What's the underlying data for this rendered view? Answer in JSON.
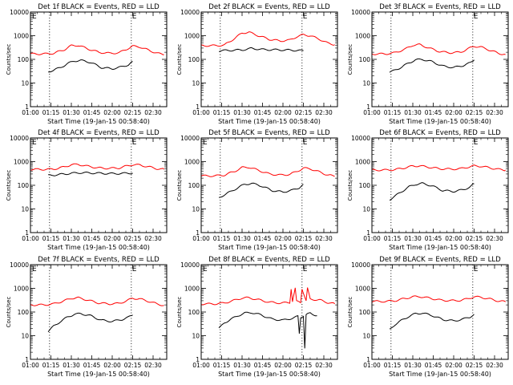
{
  "chart_data": [
    {
      "type": "line",
      "title": "Det 1f BLACK = Events, RED = LLD",
      "xlabel": "Start Time (19-Jan-15 00:58:40)",
      "ylabel": "Counts/sec",
      "yscale": "log",
      "ylim": [
        1,
        10000
      ],
      "xlim": [
        "01:00",
        "02:40"
      ],
      "x_ticks": [
        "01:00",
        "01:15",
        "01:30",
        "01:45",
        "02:00",
        "02:15",
        "02:30"
      ],
      "y_ticks": [
        "1",
        "10",
        "100",
        "1000",
        "10000"
      ],
      "markers": [
        {
          "x": "01:14",
          "label": ""
        },
        {
          "x": "02:14",
          "label": "E"
        }
      ],
      "corner_label": "E",
      "series": [
        {
          "color": "#ff0000",
          "x": [
            "01:00",
            "01:10",
            "01:17",
            "01:25",
            "01:30",
            "01:35",
            "01:42",
            "01:50",
            "01:58",
            "02:05",
            "02:10",
            "02:15",
            "02:20",
            "02:27",
            "02:33",
            "02:38"
          ],
          "values": [
            170,
            170,
            180,
            260,
            380,
            390,
            280,
            200,
            180,
            190,
            260,
            360,
            340,
            240,
            180,
            160
          ]
        },
        {
          "color": "#000000",
          "x": [
            "01:13",
            "01:17",
            "01:22",
            "01:27",
            "01:32",
            "01:37",
            "01:44",
            "01:52",
            "02:00",
            "02:07",
            "02:12",
            "02:15"
          ],
          "values": [
            30,
            35,
            45,
            65,
            85,
            90,
            75,
            45,
            40,
            48,
            60,
            80
          ]
        }
      ]
    },
    {
      "type": "line",
      "title": "Det 2f BLACK = Events, RED = LLD",
      "xlabel": "Start Time (19-Jan-15 00:58:40)",
      "ylabel": "Counts/sec",
      "yscale": "log",
      "ylim": [
        1,
        10000
      ],
      "xlim": [
        "01:00",
        "02:40"
      ],
      "x_ticks": [
        "01:00",
        "01:15",
        "01:30",
        "01:45",
        "02:00",
        "02:15",
        "02:30"
      ],
      "y_ticks": [
        "1",
        "10",
        "100",
        "1000",
        "10000"
      ],
      "markers": [
        {
          "x": "01:14",
          "label": ""
        },
        {
          "x": "02:14",
          "label": "E"
        }
      ],
      "corner_label": "",
      "series": [
        {
          "color": "#ff0000",
          "x": [
            "01:00",
            "01:10",
            "01:17",
            "01:25",
            "01:30",
            "01:35",
            "01:42",
            "01:50",
            "01:58",
            "02:05",
            "02:10",
            "02:15",
            "02:20",
            "02:27",
            "02:33",
            "02:38"
          ],
          "values": [
            380,
            380,
            400,
            800,
            1300,
            1400,
            1000,
            700,
            600,
            650,
            900,
            1100,
            1000,
            700,
            480,
            420
          ]
        },
        {
          "color": "#000000",
          "x": [
            "01:13",
            "01:20",
            "01:30",
            "01:37",
            "01:45",
            "02:00",
            "02:10",
            "02:15"
          ],
          "values": [
            230,
            240,
            250,
            290,
            260,
            250,
            240,
            230
          ]
        }
      ]
    },
    {
      "type": "line",
      "title": "Det 3f BLACK = Events, RED = LLD",
      "xlabel": "Start Time (19-Jan-15 00:58:40)",
      "ylabel": "Counts/sec",
      "yscale": "log",
      "ylim": [
        1,
        10000
      ],
      "xlim": [
        "01:00",
        "02:40"
      ],
      "x_ticks": [
        "01:00",
        "01:15",
        "01:30",
        "01:45",
        "02:00",
        "02:15",
        "02:30"
      ],
      "y_ticks": [
        "1",
        "10",
        "100",
        "1000",
        "10000"
      ],
      "markers": [
        {
          "x": "01:14",
          "label": ""
        },
        {
          "x": "02:14",
          "label": "E"
        }
      ],
      "corner_label": "",
      "series": [
        {
          "color": "#ff0000",
          "x": [
            "01:00",
            "01:10",
            "01:17",
            "01:25",
            "01:30",
            "01:35",
            "01:42",
            "01:50",
            "01:58",
            "02:05",
            "02:10",
            "02:15",
            "02:20",
            "02:27",
            "02:33",
            "02:38"
          ],
          "values": [
            170,
            170,
            190,
            280,
            400,
            420,
            300,
            210,
            190,
            200,
            270,
            360,
            330,
            240,
            180,
            160
          ]
        },
        {
          "color": "#000000",
          "x": [
            "01:13",
            "01:17",
            "01:22",
            "01:27",
            "01:32",
            "01:37",
            "01:44",
            "01:52",
            "02:00",
            "02:07",
            "02:12",
            "02:15"
          ],
          "values": [
            28,
            35,
            48,
            70,
            95,
            100,
            80,
            52,
            45,
            55,
            70,
            95
          ]
        }
      ]
    },
    {
      "type": "line",
      "title": "Det 4f BLACK = Events, RED = LLD",
      "xlabel": "Start Time (19-Jan-15 00:58:40)",
      "ylabel": "Counts/sec",
      "yscale": "log",
      "ylim": [
        1,
        10000
      ],
      "xlim": [
        "01:00",
        "02:40"
      ],
      "x_ticks": [
        "01:00",
        "01:15",
        "01:30",
        "01:45",
        "02:00",
        "02:15",
        "02:30"
      ],
      "y_ticks": [
        "1",
        "10",
        "100",
        "1000",
        "10000"
      ],
      "markers": [
        {
          "x": "01:14",
          "label": ""
        },
        {
          "x": "02:14",
          "label": "E"
        }
      ],
      "corner_label": "E",
      "series": [
        {
          "color": "#ff0000",
          "x": [
            "01:00",
            "01:10",
            "01:17",
            "01:25",
            "01:30",
            "01:35",
            "01:42",
            "01:50",
            "01:58",
            "02:05",
            "02:10",
            "02:15",
            "02:20",
            "02:27",
            "02:33",
            "02:38"
          ],
          "values": [
            470,
            470,
            480,
            600,
            740,
            760,
            640,
            540,
            520,
            540,
            640,
            740,
            720,
            600,
            500,
            470
          ]
        },
        {
          "color": "#000000",
          "x": [
            "01:13",
            "01:20",
            "01:30",
            "01:37",
            "01:45",
            "02:00",
            "02:10",
            "02:15"
          ],
          "values": [
            260,
            280,
            320,
            340,
            330,
            310,
            320,
            330
          ]
        }
      ]
    },
    {
      "type": "line",
      "title": "Det 5f BLACK = Events, RED = LLD",
      "xlabel": "Start Time (19-Jan-15 00:58:40)",
      "ylabel": "Counts/sec",
      "yscale": "log",
      "ylim": [
        1,
        10000
      ],
      "xlim": [
        "01:00",
        "02:40"
      ],
      "x_ticks": [
        "01:00",
        "01:15",
        "01:30",
        "01:45",
        "02:00",
        "02:15",
        "02:30"
      ],
      "y_ticks": [
        "1",
        "10",
        "100",
        "1000",
        "10000"
      ],
      "markers": [
        {
          "x": "01:14",
          "label": ""
        },
        {
          "x": "02:14",
          "label": "E"
        }
      ],
      "corner_label": "E",
      "series": [
        {
          "color": "#ff0000",
          "x": [
            "01:00",
            "01:10",
            "01:17",
            "01:25",
            "01:30",
            "01:35",
            "01:42",
            "01:50",
            "01:58",
            "02:05",
            "02:10",
            "02:15",
            "02:20",
            "02:27",
            "02:33",
            "02:38"
          ],
          "values": [
            250,
            250,
            270,
            400,
            560,
            580,
            430,
            300,
            270,
            290,
            380,
            530,
            500,
            360,
            270,
            240
          ]
        },
        {
          "color": "#000000",
          "x": [
            "01:13",
            "01:17",
            "01:22",
            "01:27",
            "01:32",
            "01:37",
            "01:44",
            "01:52",
            "02:00",
            "02:07",
            "02:12",
            "02:15"
          ],
          "values": [
            30,
            40,
            55,
            80,
            110,
            120,
            95,
            60,
            52,
            62,
            80,
            110
          ]
        }
      ]
    },
    {
      "type": "line",
      "title": "Det 6f BLACK = Events, RED = LLD",
      "xlabel": "Start Time (19-Jan-15 00:58:40)",
      "ylabel": "Counts/sec",
      "yscale": "log",
      "ylim": [
        1,
        10000
      ],
      "xlim": [
        "01:00",
        "02:40"
      ],
      "x_ticks": [
        "01:00",
        "01:15",
        "01:30",
        "01:45",
        "02:00",
        "02:15",
        "02:30"
      ],
      "y_ticks": [
        "1",
        "10",
        "100",
        "1000",
        "10000"
      ],
      "markers": [
        {
          "x": "01:14",
          "label": ""
        },
        {
          "x": "02:14",
          "label": "E"
        }
      ],
      "corner_label": "",
      "series": [
        {
          "color": "#ff0000",
          "x": [
            "01:00",
            "01:10",
            "01:17",
            "01:25",
            "01:30",
            "01:35",
            "01:42",
            "01:50",
            "01:58",
            "02:05",
            "02:10",
            "02:15",
            "02:20",
            "02:27",
            "02:33",
            "02:38"
          ],
          "values": [
            440,
            440,
            460,
            560,
            650,
            660,
            580,
            500,
            480,
            500,
            580,
            660,
            640,
            540,
            470,
            440
          ]
        },
        {
          "color": "#000000",
          "x": [
            "01:13",
            "01:17",
            "01:22",
            "01:27",
            "01:32",
            "01:37",
            "01:44",
            "01:52",
            "02:00",
            "02:07",
            "02:12",
            "02:15"
          ],
          "values": [
            25,
            35,
            55,
            85,
            110,
            120,
            95,
            60,
            55,
            65,
            85,
            115
          ]
        }
      ]
    },
    {
      "type": "line",
      "title": "Det 7f BLACK = Events, RED = LLD",
      "xlabel": "Start Time (19-Jan-15 00:58:40)",
      "ylabel": "Counts/sec",
      "yscale": "log",
      "ylim": [
        1,
        10000
      ],
      "xlim": [
        "01:00",
        "02:40"
      ],
      "x_ticks": [
        "01:00",
        "01:15",
        "01:30",
        "01:45",
        "02:00",
        "02:15",
        "02:30"
      ],
      "y_ticks": [
        "1",
        "10",
        "100",
        "1000",
        "10000"
      ],
      "markers": [
        {
          "x": "01:14",
          "label": ""
        },
        {
          "x": "02:14",
          "label": "E"
        }
      ],
      "corner_label": "E",
      "series": [
        {
          "color": "#ff0000",
          "x": [
            "01:00",
            "01:10",
            "01:17",
            "01:25",
            "01:30",
            "01:35",
            "01:42",
            "01:50",
            "01:58",
            "02:05",
            "02:10",
            "02:15",
            "02:20",
            "02:27",
            "02:33",
            "02:38"
          ],
          "values": [
            200,
            200,
            220,
            300,
            380,
            400,
            320,
            240,
            220,
            230,
            290,
            380,
            360,
            280,
            220,
            190
          ]
        },
        {
          "color": "#000000",
          "x": [
            "01:13",
            "01:17",
            "01:22",
            "01:27",
            "01:32",
            "01:37",
            "01:44",
            "01:52",
            "02:00",
            "02:07",
            "02:12",
            "02:15"
          ],
          "values": [
            15,
            25,
            40,
            60,
            80,
            85,
            70,
            45,
            40,
            48,
            60,
            75
          ]
        }
      ]
    },
    {
      "type": "line",
      "title": "Det 8f BLACK = Events, RED = LLD",
      "xlabel": "Start Time (19-Jan-15 00:58:40)",
      "ylabel": "Counts/sec",
      "yscale": "log",
      "ylim": [
        1,
        10000
      ],
      "xlim": [
        "01:00",
        "02:40"
      ],
      "x_ticks": [
        "01:00",
        "01:15",
        "01:30",
        "01:45",
        "02:00",
        "02:15",
        "02:30"
      ],
      "y_ticks": [
        "1",
        "10",
        "100",
        "1000",
        "10000"
      ],
      "markers": [
        {
          "x": "01:14",
          "label": ""
        },
        {
          "x": "02:14",
          "label": "E"
        }
      ],
      "corner_label": "E",
      "series": [
        {
          "color": "#ff0000",
          "x": [
            "01:00",
            "01:10",
            "01:17",
            "01:25",
            "01:30",
            "01:35",
            "01:42",
            "01:50",
            "01:58",
            "02:05",
            "02:06",
            "02:07",
            "02:09",
            "02:10",
            "02:13",
            "02:14",
            "02:17",
            "02:18",
            "02:20",
            "02:27",
            "02:33",
            "02:38"
          ],
          "values": [
            220,
            220,
            240,
            320,
            390,
            400,
            330,
            260,
            240,
            250,
            1000,
            280,
            1000,
            280,
            260,
            1000,
            290,
            1000,
            350,
            320,
            250,
            220
          ]
        },
        {
          "color": "#000000",
          "x": [
            "01:13",
            "01:17",
            "01:22",
            "01:27",
            "01:32",
            "01:37",
            "01:44",
            "01:52",
            "02:00",
            "02:07",
            "02:11",
            "02:12",
            "02:13",
            "02:15",
            "02:16",
            "02:17",
            "02:20",
            "02:25"
          ],
          "values": [
            20,
            35,
            50,
            70,
            90,
            95,
            75,
            50,
            45,
            55,
            65,
            12,
            60,
            70,
            3,
            75,
            90,
            70
          ]
        }
      ]
    },
    {
      "type": "line",
      "title": "Det 9f BLACK = Events, RED = LLD",
      "xlabel": "Start Time (19-Jan-15 00:58:40)",
      "ylabel": "Counts/sec",
      "yscale": "log",
      "ylim": [
        1,
        10000
      ],
      "xlim": [
        "01:00",
        "02:40"
      ],
      "x_ticks": [
        "01:00",
        "01:15",
        "01:30",
        "01:45",
        "02:00",
        "02:15",
        "02:30"
      ],
      "y_ticks": [
        "1",
        "10",
        "100",
        "1000",
        "10000"
      ],
      "markers": [
        {
          "x": "01:14",
          "label": ""
        },
        {
          "x": "02:14",
          "label": "E"
        }
      ],
      "corner_label": "",
      "series": [
        {
          "color": "#ff0000",
          "x": [
            "01:00",
            "01:10",
            "01:17",
            "01:25",
            "01:30",
            "01:35",
            "01:42",
            "01:50",
            "01:58",
            "02:05",
            "02:10",
            "02:15",
            "02:20",
            "02:27",
            "02:33",
            "02:38"
          ],
          "values": [
            280,
            280,
            300,
            380,
            440,
            450,
            390,
            320,
            300,
            310,
            360,
            440,
            420,
            350,
            290,
            270
          ]
        },
        {
          "color": "#000000",
          "x": [
            "01:13",
            "01:17",
            "01:22",
            "01:27",
            "01:32",
            "01:37",
            "01:44",
            "01:52",
            "02:00",
            "02:07",
            "02:12",
            "02:15"
          ],
          "values": [
            18,
            30,
            45,
            65,
            85,
            90,
            72,
            48,
            42,
            50,
            62,
            80
          ]
        }
      ]
    }
  ]
}
